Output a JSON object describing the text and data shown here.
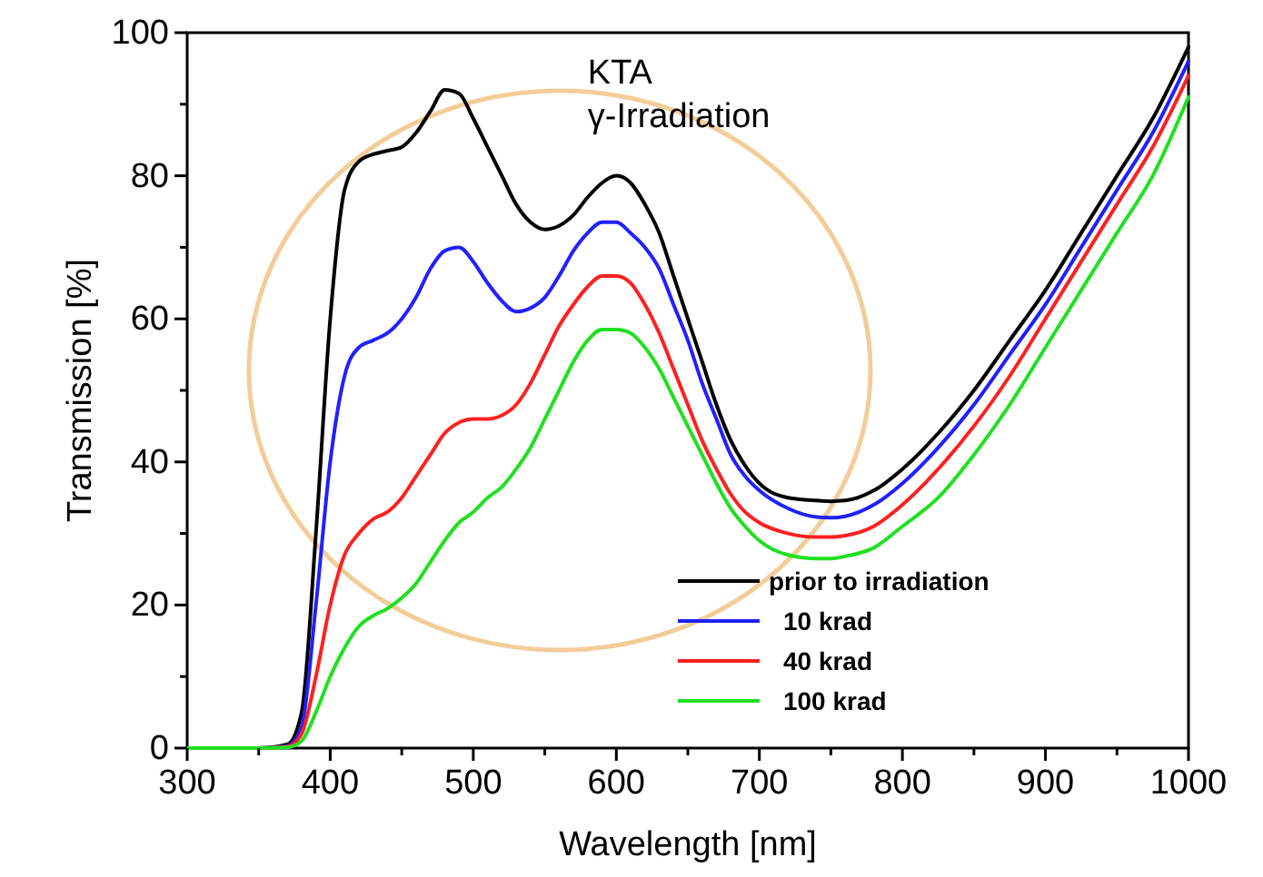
{
  "chart_data": {
    "type": "line",
    "xlabel": "Wavelength [nm]",
    "ylabel": "Transmission [%]",
    "annotations": [
      "KTA",
      "γ-Irradiation"
    ],
    "x": [
      300,
      350,
      370,
      380,
      390,
      400,
      410,
      420,
      430,
      440,
      450,
      460,
      470,
      480,
      490,
      500,
      510,
      520,
      530,
      540,
      550,
      560,
      570,
      580,
      590,
      600,
      610,
      620,
      630,
      640,
      650,
      660,
      670,
      680,
      690,
      700,
      720,
      740,
      750,
      760,
      780,
      800,
      825,
      850,
      875,
      900,
      925,
      950,
      975,
      1000
    ],
    "series": [
      {
        "name": "prior to irradiation",
        "color": "#000000",
        "values": [
          0,
          0,
          0.5,
          5,
          30,
          60,
          78,
          82,
          83,
          83.5,
          84,
          86,
          89,
          92,
          91.5,
          88,
          84,
          80,
          76,
          73.5,
          72.5,
          73,
          74.5,
          77,
          79,
          80,
          79,
          76,
          72,
          66,
          60,
          54,
          48,
          43,
          39.5,
          37,
          35,
          34.6,
          34.5,
          34.6,
          36,
          39,
          44,
          50,
          57,
          64,
          72,
          80,
          88,
          98
        ]
      },
      {
        "name": "10 krad",
        "color": "#2020ff",
        "values": [
          0,
          0,
          0.3,
          3,
          20,
          40,
          52,
          56,
          57,
          58,
          60,
          63,
          67,
          69.5,
          70,
          68,
          65,
          62.5,
          61,
          61.5,
          63,
          66,
          69.5,
          72,
          73.5,
          73.5,
          72,
          70,
          67,
          62,
          57,
          51,
          46,
          41,
          38,
          36,
          33.5,
          32.3,
          32.2,
          32.4,
          34,
          37,
          42,
          48,
          55,
          62,
          70,
          78,
          86,
          96
        ]
      },
      {
        "name": "40 krad",
        "color": "#ff2020",
        "values": [
          0,
          0,
          0.2,
          2,
          10,
          20,
          27,
          30,
          32,
          33,
          35,
          38,
          41,
          44,
          45.5,
          46,
          46,
          46.5,
          48,
          51,
          55,
          59,
          62,
          64.5,
          66,
          66,
          65,
          62,
          58,
          53,
          48,
          43,
          39,
          35.5,
          33,
          31.5,
          30,
          29.5,
          29.5,
          29.7,
          31,
          34,
          39,
          45,
          52,
          60,
          68,
          76,
          84,
          94
        ]
      },
      {
        "name": "100 krad",
        "color": "#20e020",
        "values": [
          0,
          0,
          0.1,
          1,
          5,
          10,
          14,
          17,
          18.5,
          19.5,
          21,
          23,
          26,
          29,
          31.5,
          33,
          35,
          36.5,
          39,
          42,
          46,
          50,
          54,
          57,
          58.5,
          58.5,
          58,
          56,
          53,
          49,
          45,
          41,
          37,
          33.5,
          31,
          29,
          27,
          26.5,
          26.5,
          26.8,
          28,
          31,
          35,
          41,
          48,
          56,
          64,
          72,
          80,
          91
        ]
      }
    ],
    "xlim": [
      300,
      1000
    ],
    "xticks": [
      300,
      {
        "value": 350,
        "label": null
      },
      400,
      {
        "value": 450,
        "label": null
      },
      500,
      {
        "value": 550,
        "label": null
      },
      600,
      {
        "value": 650,
        "label": null
      },
      700,
      {
        "value": 750,
        "label": null
      },
      800,
      {
        "value": 850,
        "label": null
      },
      900,
      {
        "value": 950,
        "label": null
      },
      1000
    ],
    "ylim": [
      0,
      100
    ],
    "yticks": [
      0,
      {
        "value": 10,
        "label": null
      },
      20,
      {
        "value": 30,
        "label": null
      },
      40,
      {
        "value": 50,
        "label": null
      },
      60,
      {
        "value": 70,
        "label": null
      },
      80,
      {
        "value": 90,
        "label": null
      },
      100
    ],
    "grid": false,
    "legend": "bottom right",
    "line_style": "solid",
    "marker": "none"
  }
}
